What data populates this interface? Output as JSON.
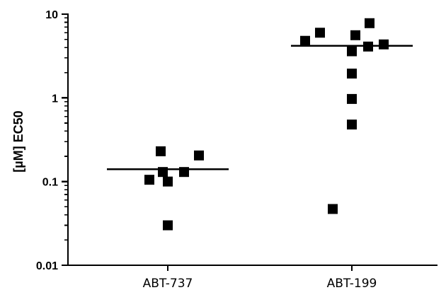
{
  "chart_data": {
    "type": "scatter",
    "ylabel": "[µM] EC50",
    "xlabel": "",
    "y_scale": "log",
    "ylim": [
      0.01,
      10
    ],
    "y_ticks": [
      {
        "value": 0.01,
        "label": "0.01"
      },
      {
        "value": 0.1,
        "label": "0.1"
      },
      {
        "value": 1,
        "label": "1"
      },
      {
        "value": 10,
        "label": "10"
      }
    ],
    "categories": [
      "ABT-737",
      "ABT-199"
    ],
    "series": [
      {
        "category": "ABT-737",
        "values": [
          0.03,
          0.1,
          0.105,
          0.13,
          0.13,
          0.205,
          0.23
        ],
        "median": 0.14
      },
      {
        "category": "ABT-199",
        "values": [
          0.047,
          0.48,
          0.97,
          1.95,
          3.6,
          4.1,
          4.35,
          4.8,
          5.6,
          6.0,
          7.8
        ],
        "median": 4.2
      }
    ],
    "grid": false,
    "legend": "none",
    "colors": {
      "points": "#000000",
      "axis": "#000000"
    }
  }
}
